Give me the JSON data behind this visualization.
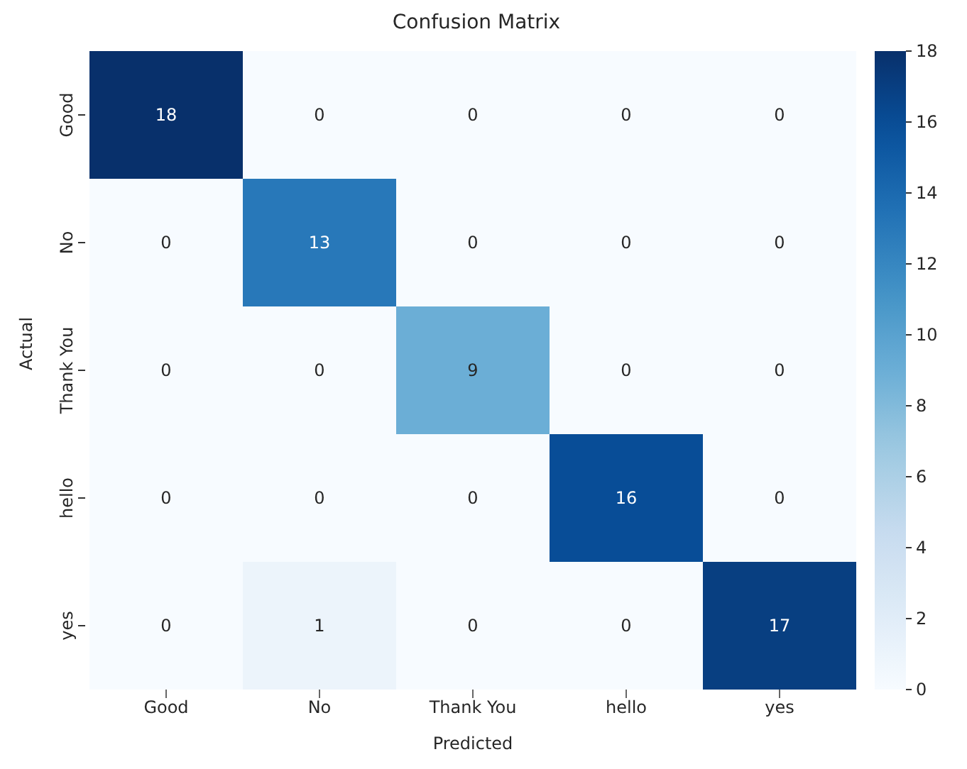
{
  "chart_data": {
    "type": "heatmap",
    "title": "Confusion Matrix",
    "xlabel": "Predicted",
    "ylabel": "Actual",
    "categories": [
      "Good",
      "No",
      "Thank You",
      "hello",
      "yes"
    ],
    "y_categories": [
      "Good",
      "No",
      "Thank You",
      "hello",
      "yes"
    ],
    "cells": [
      [
        18,
        0,
        0,
        0,
        0
      ],
      [
        0,
        13,
        0,
        0,
        0
      ],
      [
        0,
        0,
        9,
        0,
        0
      ],
      [
        0,
        0,
        0,
        16,
        0
      ],
      [
        0,
        1,
        0,
        0,
        17
      ]
    ],
    "data_labels": true,
    "clim": [
      0,
      18
    ],
    "cticks": [
      0,
      2,
      4,
      6,
      8,
      10,
      12,
      14,
      16,
      18
    ]
  }
}
